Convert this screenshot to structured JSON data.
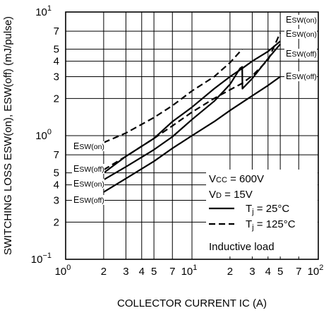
{
  "chart_data": {
    "type": "line",
    "xlabel": "COLLECTOR CURRENT  IC (A)",
    "ylabel": "SWITCHING LOSS  ESW(on), ESW(off) (mJ/pulse)",
    "xscale": "log",
    "yscale": "log",
    "xlim": [
      1,
      100
    ],
    "ylim": [
      0.1,
      10
    ],
    "grid": true,
    "x_ticks": [
      {
        "value": 1,
        "base": "10",
        "exp": "0"
      },
      {
        "value": 2,
        "base": "2",
        "exp": ""
      },
      {
        "value": 3,
        "base": "3",
        "exp": ""
      },
      {
        "value": 4,
        "base": "4",
        "exp": ""
      },
      {
        "value": 5,
        "base": "5",
        "exp": ""
      },
      {
        "value": 7,
        "base": "7",
        "exp": ""
      },
      {
        "value": 10,
        "base": "10",
        "exp": "1"
      },
      {
        "value": 20,
        "base": "2",
        "exp": ""
      },
      {
        "value": 30,
        "base": "3",
        "exp": ""
      },
      {
        "value": 40,
        "base": "4",
        "exp": ""
      },
      {
        "value": 50,
        "base": "5",
        "exp": ""
      },
      {
        "value": 70,
        "base": "7",
        "exp": ""
      },
      {
        "value": 100,
        "base": "10",
        "exp": "2"
      }
    ],
    "y_ticks": [
      {
        "value": 0.1,
        "base": "10",
        "exp": "−1"
      },
      {
        "value": 0.2,
        "base": "2",
        "exp": ""
      },
      {
        "value": 0.3,
        "base": "3",
        "exp": ""
      },
      {
        "value": 0.4,
        "base": "4",
        "exp": ""
      },
      {
        "value": 0.5,
        "base": "5",
        "exp": ""
      },
      {
        "value": 0.7,
        "base": "7",
        "exp": ""
      },
      {
        "value": 1,
        "base": "10",
        "exp": "0"
      },
      {
        "value": 2,
        "base": "2",
        "exp": ""
      },
      {
        "value": 3,
        "base": "3",
        "exp": ""
      },
      {
        "value": 4,
        "base": "4",
        "exp": ""
      },
      {
        "value": 5,
        "base": "5",
        "exp": ""
      },
      {
        "value": 7,
        "base": "7",
        "exp": ""
      },
      {
        "value": 10,
        "base": "10",
        "exp": "1"
      }
    ],
    "series": [
      {
        "id": "eon_25",
        "style": "solid",
        "label": "ESW(on)",
        "x": [
          2,
          3,
          5,
          7,
          10,
          15,
          20,
          25,
          30,
          40,
          50
        ],
        "y": [
          0.5,
          0.68,
          0.95,
          1.3,
          1.7,
          2.4,
          3.0,
          3.5,
          4.0,
          4.8,
          5.8
        ]
      },
      {
        "id": "eoff_25",
        "style": "solid",
        "label": "ESW(off)",
        "x": [
          2,
          3,
          5,
          7,
          10,
          15,
          20,
          24,
          25,
          25.1,
          30,
          40,
          50
        ],
        "y": [
          0.44,
          0.56,
          0.77,
          0.98,
          1.35,
          1.9,
          2.6,
          3.5,
          3.6,
          2.4,
          2.9,
          4.2,
          5.5
        ]
      },
      {
        "id": "eon_125",
        "style": "dashed",
        "label": "ESW(on)",
        "x": [
          2,
          3,
          5,
          7,
          10,
          15,
          20,
          25
        ],
        "y": [
          0.88,
          1.05,
          1.4,
          1.75,
          2.3,
          3.0,
          3.9,
          5.0
        ]
      },
      {
        "id": "eoff_125",
        "style": "dashed",
        "label": "ESW(off)",
        "x": [
          2,
          3,
          5,
          7,
          10,
          15,
          20,
          25,
          30,
          40,
          50
        ],
        "y": [
          0.53,
          0.68,
          0.95,
          1.2,
          1.55,
          2.0,
          2.35,
          2.65,
          3.05,
          4.1,
          6.8
        ]
      },
      {
        "id": "eoff_25_lower",
        "style": "solid",
        "label": "ESW(off)",
        "x": [
          2,
          3,
          5,
          7,
          10,
          15,
          20,
          30,
          40,
          50
        ],
        "y": [
          0.35,
          0.45,
          0.62,
          0.79,
          1.0,
          1.3,
          1.6,
          2.1,
          2.55,
          3.0
        ]
      }
    ],
    "curve_labels": {
      "right": [
        "ESW(on)",
        "ESW(on)",
        "ESW(off)",
        "ESW(off)"
      ],
      "left": [
        "ESW(on)",
        "ESW(off)",
        "ESW(on)",
        "ESW(off)"
      ]
    },
    "legend": {
      "conditions": [
        "VCC = 600V",
        "VD = 15V"
      ],
      "entries": [
        {
          "style": "solid",
          "label": "Tj = 25°C"
        },
        {
          "style": "dashed",
          "label": "Tj = 125°C"
        }
      ],
      "note": "Inductive load",
      "position": "bottom-right"
    }
  }
}
